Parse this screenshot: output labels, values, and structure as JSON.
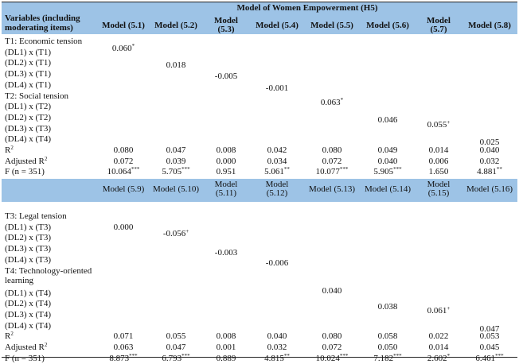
{
  "title": "Model of Women Empowerment (H5)",
  "col_header": "Variables (including moderating items)",
  "part1": {
    "models": [
      "Model (5.1)",
      "Model (5.2)",
      "Model (5.3)",
      "Model (5.4)",
      "Model (5.5)",
      "Model (5.6)",
      "Model (5.7)",
      "Model (5.8)"
    ],
    "rows": [
      {
        "label": "T1: Economic tension",
        "values": [
          "",
          "",
          "",
          "",
          "",
          "",
          "",
          ""
        ]
      },
      {
        "label": "(DL1) x (T1)",
        "values": [
          "0.060*",
          "",
          "",
          "",
          "",
          "",
          "",
          ""
        ]
      },
      {
        "label": "(DL2) x (T1)",
        "values": [
          "",
          "0.018",
          "",
          "",
          "",
          "",
          "",
          ""
        ]
      },
      {
        "label": "(DL3) x (T1)",
        "values": [
          "",
          "",
          "-0.005",
          "",
          "",
          "",
          "",
          ""
        ]
      },
      {
        "label": "(DL4) x (T1)",
        "values": [
          "",
          "",
          "",
          "-0.001",
          "",
          "",
          "",
          ""
        ]
      },
      {
        "label": "T2: Social tension",
        "values": [
          "",
          "",
          "",
          "",
          "",
          "",
          "",
          ""
        ]
      },
      {
        "label": "(DL1) x (T2)",
        "values": [
          "",
          "",
          "",
          "",
          "0.063*",
          "",
          "",
          ""
        ]
      },
      {
        "label": "(DL2) x (T2)",
        "values": [
          "",
          "",
          "",
          "",
          "",
          "0.046",
          "",
          ""
        ]
      },
      {
        "label": "(DL3) x (T3)",
        "values": [
          "",
          "",
          "",
          "",
          "",
          "",
          "0.055+",
          ""
        ]
      },
      {
        "label": "(DL4) x (T4)",
        "values": [
          "",
          "",
          "",
          "",
          "",
          "",
          "",
          "0.025"
        ]
      },
      {
        "label": "R2",
        "values": [
          "0.080",
          "0.047",
          "0.008",
          "0.042",
          "0.080",
          "0.049",
          "0.014",
          "0.040"
        ]
      },
      {
        "label": "Adjusted R2",
        "values": [
          "0.072",
          "0.039",
          "0.000",
          "0.034",
          "0.072",
          "0.040",
          "0.006",
          "0.032"
        ]
      },
      {
        "label": "F (n = 351)",
        "values": [
          "10.064***",
          "5.705***",
          "0.951",
          "5.061**",
          "10.077***",
          "5.905***",
          "1.650",
          "4.881**"
        ]
      }
    ]
  },
  "part2": {
    "models": [
      "Model (5.9)",
      "Model (5.10)",
      "Model (5.11)",
      "Model (5.12)",
      "Model (5.13)",
      "Model (5.14)",
      "Model (5.15)",
      "Model (5.16)"
    ],
    "rows": [
      {
        "label": "T3: Legal tension",
        "values": [
          "",
          "",
          "",
          "",
          "",
          "",
          "",
          ""
        ]
      },
      {
        "label": "(DL1) x (T3)",
        "values": [
          "0.000",
          "",
          "",
          "",
          "",
          "",
          "",
          ""
        ]
      },
      {
        "label": "(DL2) x (T3)",
        "values": [
          "",
          "-0.056+",
          "",
          "",
          "",
          "",
          "",
          ""
        ]
      },
      {
        "label": "(DL3) x (T3)",
        "values": [
          "",
          "",
          "-0.003",
          "",
          "",
          "",
          "",
          ""
        ]
      },
      {
        "label": "(DL4) x (T3)",
        "values": [
          "",
          "",
          "",
          "-0.006",
          "",
          "",
          "",
          ""
        ]
      },
      {
        "label": "T4: Technology-oriented learning",
        "values": [
          "",
          "",
          "",
          "",
          "",
          "",
          "",
          ""
        ]
      },
      {
        "label": "(DL1) x (T4)",
        "values": [
          "",
          "",
          "",
          "",
          "0.040",
          "",
          "",
          ""
        ]
      },
      {
        "label": "(DL2) x (T4)",
        "values": [
          "",
          "",
          "",
          "",
          "",
          "0.038",
          "",
          ""
        ]
      },
      {
        "label": "(DL3) x (T4)",
        "values": [
          "",
          "",
          "",
          "",
          "",
          "",
          "0.061+",
          ""
        ]
      },
      {
        "label": "(DL4) x (T4)",
        "values": [
          "",
          "",
          "",
          "",
          "",
          "",
          "",
          "0.047"
        ]
      },
      {
        "label": "R2",
        "values": [
          "0.071",
          "0.055",
          "0.008",
          "0.040",
          "0.080",
          "0.058",
          "0.022",
          "0.053"
        ]
      },
      {
        "label": "Adjusted R2",
        "values": [
          "0.063",
          "0.047",
          "0.001",
          "0.032",
          "0.072",
          "0.050",
          "0.014",
          "0.045"
        ]
      },
      {
        "label": "F (n = 351)",
        "values": [
          "8.873***",
          "6.793***",
          "0.889",
          "4.815**",
          "10.024***",
          "7.182***",
          "2.602*",
          "6.461***"
        ]
      }
    ]
  }
}
